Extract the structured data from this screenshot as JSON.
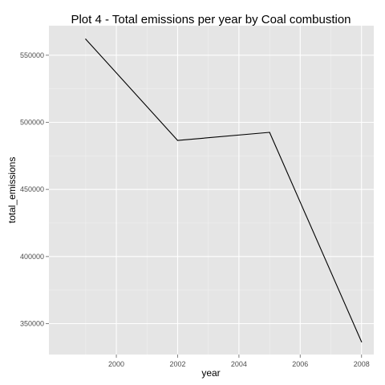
{
  "chart_data": {
    "type": "line",
    "title": "Plot 4 - Total emissions per year by Coal combustion",
    "xlabel": "year",
    "ylabel": "total_emissions",
    "x": [
      1999,
      2002,
      2005,
      2008
    ],
    "series": [
      {
        "values": [
          562000,
          486500,
          492500,
          336500
        ]
      }
    ],
    "xlim": [
      1997.8,
      2008.4
    ],
    "ylim": [
      327000,
      572000
    ],
    "x_ticks": [
      2000,
      2002,
      2004,
      2006,
      2008
    ],
    "x_tick_labels": [
      "2000",
      "2002",
      "2004",
      "2006",
      "2008"
    ],
    "y_ticks": [
      350000,
      400000,
      450000,
      500000,
      550000
    ],
    "y_tick_labels": [
      "350000",
      "400000",
      "450000",
      "500000",
      "550000"
    ],
    "grid": true,
    "colors": {
      "panel": "#e5e5e5",
      "grid_major": "#ffffff",
      "grid_minor": "#f2f2f2",
      "line": "#000000"
    }
  }
}
